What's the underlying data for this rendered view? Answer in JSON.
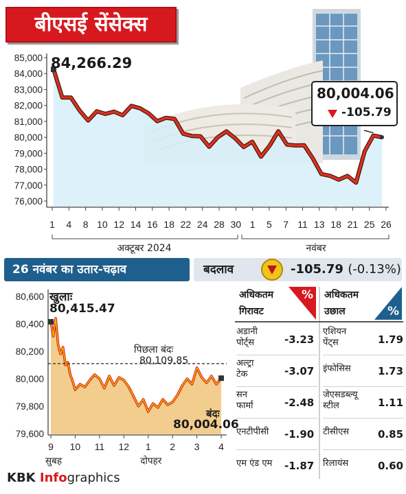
{
  "title": "बीएसई सेंसेक्स",
  "top_chart": {
    "start_value_label": "84,266.29",
    "end_value_label": "80,004.06",
    "end_change_label": "-105.79",
    "month_labels": [
      "अक्टूबर 2024",
      "नवंबर"
    ]
  },
  "bar": {
    "left_label": "26 नवंबर का उतार-चढ़ाव",
    "change_label": "बदलाव",
    "change_value": "-105.79",
    "change_percent": "(-0.13%)"
  },
  "bottom_chart": {
    "open_label": "खुलाः",
    "open_value": "80,415.47",
    "prev_close_label": "पिछला बंदः",
    "prev_close_value": "80,109.85",
    "close_label": "बंदः",
    "close_value": "80,004.06",
    "time_sub_labels": [
      "सुबह",
      "दोपहर"
    ]
  },
  "table": {
    "losers_header": [
      "अधिकतम",
      "गिरावट"
    ],
    "gainers_header": [
      "अधिकतम",
      "उछाल"
    ],
    "percent_symbol": "%",
    "losers": [
      {
        "name": [
          "अडानी",
          "पोर्ट्स"
        ],
        "value": "-3.23"
      },
      {
        "name": [
          "अल्ट्रा",
          "टेक"
        ],
        "value": "-3.07"
      },
      {
        "name": [
          "सन",
          "फार्मा"
        ],
        "value": "-2.48"
      },
      {
        "name": [
          "एनटीपीसी",
          ""
        ],
        "value": "-1.90"
      },
      {
        "name": [
          "एम एंड एम",
          ""
        ],
        "value": "-1.87"
      }
    ],
    "gainers": [
      {
        "name": [
          "एशियन",
          "पेंट्स"
        ],
        "value": "1.79"
      },
      {
        "name": [
          "इंफोसिस",
          ""
        ],
        "value": "1.73"
      },
      {
        "name": [
          "जेएसडब्ल्यू",
          "स्टील"
        ],
        "value": "1.11"
      },
      {
        "name": [
          "टीसीएस",
          ""
        ],
        "value": "0.85"
      },
      {
        "name": [
          "रिलायंस",
          ""
        ],
        "value": "0.60"
      }
    ]
  },
  "footer": {
    "brand_a": "KBK ",
    "brand_b": "Info",
    "brand_c": "graphics"
  },
  "colors": {
    "red": "#d7191f",
    "line_top": "#e0301e",
    "fill_top": "#d6eef9",
    "fill_bottom": "#f3cd8e",
    "line_bottom": "#f2b600",
    "navy": "#1f5f8d"
  },
  "chart_data": [
    {
      "type": "line",
      "title": "बीएसई सेंसेक्स",
      "x": [
        "1",
        "2",
        "3",
        "4",
        "7",
        "8",
        "9",
        "10",
        "11",
        "14",
        "15",
        "16",
        "17",
        "18",
        "21",
        "22",
        "23",
        "24",
        "25",
        "28",
        "29",
        "30",
        "31",
        "1",
        "4",
        "5",
        "6",
        "7",
        "8",
        "11",
        "12",
        "13",
        "14",
        "18",
        "19",
        "21",
        "22",
        "25",
        "26"
      ],
      "x_tick_labels": [
        "1",
        "4",
        "8",
        "10",
        "12",
        "14",
        "16",
        "18",
        "22",
        "24",
        "28",
        "30",
        "1",
        "5",
        "7",
        "11",
        "13",
        "18",
        "21",
        "25",
        "26"
      ],
      "y_tick_labels": [
        "76,000",
        "77,000",
        "78,000",
        "79,000",
        "80,000",
        "81,000",
        "82,000",
        "83,000",
        "84,000",
        "85,000"
      ],
      "ylim": [
        76000,
        85000
      ],
      "series": [
        {
          "values": [
            84266,
            82500,
            82497,
            81688,
            81050,
            81634,
            81467,
            81611,
            81381,
            81973,
            81820,
            81501,
            81007,
            81224,
            81151,
            80220,
            80081,
            80065,
            79402,
            80005,
            80369,
            79942,
            79389,
            79725,
            78782,
            79476,
            80378,
            79541,
            79486,
            79496,
            78675,
            77691,
            77580,
            77339,
            77578,
            77156,
            79117,
            80110,
            80004
          ]
        }
      ]
    },
    {
      "type": "line",
      "title": "26 नवंबर का उतार-चढ़ाव",
      "x_tick_labels": [
        "9",
        "10",
        "11",
        "12",
        "1",
        "2",
        "3",
        "4"
      ],
      "y_tick_labels": [
        "79,600",
        "79,800",
        "80,000",
        "80,200",
        "80,400",
        "80,600"
      ],
      "ylim": [
        79600,
        80600
      ],
      "prev_close": 80109.85,
      "series": [
        {
          "x": [
            9.0,
            9.1,
            9.2,
            9.3,
            9.4,
            9.5,
            9.6,
            9.7,
            9.8,
            9.9,
            10.0,
            10.2,
            10.4,
            10.6,
            10.8,
            11.0,
            11.2,
            11.4,
            11.6,
            11.8,
            12.0,
            12.2,
            12.4,
            12.6,
            12.8,
            13.0,
            13.2,
            13.4,
            13.6,
            13.8,
            14.0,
            14.2,
            14.4,
            14.6,
            14.8,
            15.0,
            15.2,
            15.4,
            15.6,
            15.8,
            16.0
          ],
          "values": [
            80415,
            80310,
            80440,
            80250,
            80180,
            80230,
            80100,
            80120,
            80030,
            79980,
            79920,
            79960,
            79940,
            79990,
            80030,
            80000,
            79930,
            80020,
            79950,
            80010,
            79990,
            79940,
            79870,
            79800,
            79850,
            79760,
            79820,
            79790,
            79850,
            79810,
            79830,
            79880,
            79950,
            80000,
            79960,
            80080,
            80010,
            79970,
            80020,
            79960,
            80004
          ]
        }
      ]
    }
  ]
}
